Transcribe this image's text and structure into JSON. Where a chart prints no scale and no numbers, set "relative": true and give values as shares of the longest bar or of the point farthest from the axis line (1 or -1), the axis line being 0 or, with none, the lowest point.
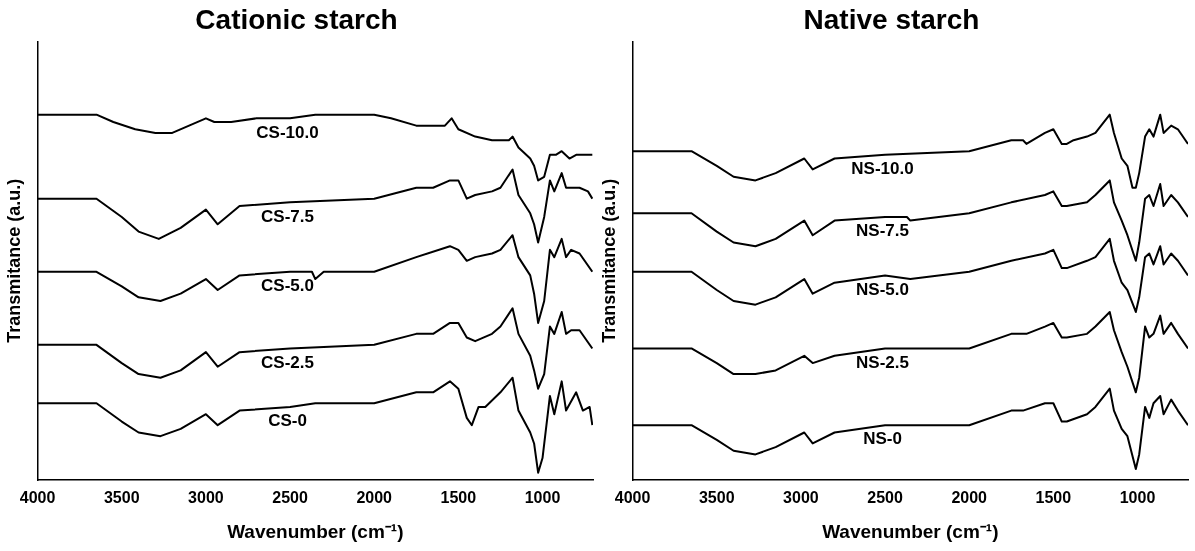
{
  "chart_data": [
    {
      "type": "line",
      "title": "Cationic starch",
      "xlabel": "Wavenumber (cm⁻¹)",
      "ylabel": "Transmitance (a.u.)",
      "relative": true,
      "xlim": [
        4000,
        700
      ],
      "xticks": [
        4000,
        3500,
        3000,
        2500,
        2000,
        1500,
        1000
      ],
      "grid": false,
      "legend": false,
      "marker": "none",
      "line_style": "solid",
      "series": [
        {
          "name": "CS-10.0",
          "color": "#000000",
          "x": [
            4000,
            3800,
            3650,
            3550,
            3420,
            3300,
            3200,
            3100,
            3000,
            2950,
            2900,
            2850,
            2700,
            2500,
            2350,
            2200,
            2000,
            1900,
            1750,
            1650,
            1580,
            1540,
            1500,
            1400,
            1300,
            1200,
            1178,
            1143,
            1073,
            1050,
            1026,
            990,
            956,
            921,
            886,
            840,
            800,
            770,
            730,
            704
          ],
          "values": [
            1.0,
            1.0,
            1.0,
            0.98,
            0.96,
            0.95,
            0.95,
            0.97,
            0.99,
            0.98,
            0.98,
            0.98,
            0.99,
            0.99,
            1.0,
            1.0,
            1.0,
            0.99,
            0.97,
            0.97,
            0.97,
            0.99,
            0.96,
            0.94,
            0.93,
            0.93,
            0.94,
            0.91,
            0.88,
            0.86,
            0.82,
            0.83,
            0.89,
            0.89,
            0.9,
            0.88,
            0.89,
            0.89,
            0.89,
            0.89
          ]
        },
        {
          "name": "CS-7.5",
          "color": "#000000",
          "x": [
            4000,
            3800,
            3650,
            3500,
            3400,
            3280,
            3150,
            3000,
            2930,
            2800,
            2500,
            2000,
            1750,
            1650,
            1550,
            1500,
            1450,
            1400,
            1300,
            1250,
            1178,
            1143,
            1073,
            1050,
            1026,
            990,
            956,
            930,
            886,
            860,
            830,
            780,
            730,
            704
          ],
          "values": [
            0.77,
            0.77,
            0.77,
            0.72,
            0.68,
            0.66,
            0.69,
            0.74,
            0.7,
            0.75,
            0.76,
            0.77,
            0.8,
            0.8,
            0.82,
            0.82,
            0.77,
            0.78,
            0.79,
            0.8,
            0.85,
            0.78,
            0.73,
            0.7,
            0.65,
            0.72,
            0.82,
            0.79,
            0.84,
            0.8,
            0.8,
            0.8,
            0.79,
            0.77
          ]
        },
        {
          "name": "CS-5.0",
          "color": "#000000",
          "x": [
            4000,
            3800,
            3650,
            3500,
            3400,
            3270,
            3150,
            3000,
            2930,
            2800,
            2500,
            2370,
            2350,
            2300,
            2000,
            1750,
            1550,
            1500,
            1450,
            1400,
            1300,
            1250,
            1178,
            1143,
            1073,
            1050,
            1026,
            990,
            956,
            930,
            886,
            860,
            830,
            780,
            704
          ],
          "values": [
            0.57,
            0.57,
            0.57,
            0.53,
            0.5,
            0.49,
            0.51,
            0.55,
            0.52,
            0.56,
            0.57,
            0.57,
            0.55,
            0.57,
            0.57,
            0.61,
            0.64,
            0.63,
            0.6,
            0.61,
            0.62,
            0.63,
            0.67,
            0.61,
            0.56,
            0.51,
            0.43,
            0.49,
            0.63,
            0.61,
            0.66,
            0.61,
            0.63,
            0.62,
            0.57
          ]
        },
        {
          "name": "CS-2.5",
          "color": "#000000",
          "x": [
            4000,
            3800,
            3650,
            3500,
            3400,
            3270,
            3150,
            3000,
            2930,
            2800,
            2500,
            2000,
            1750,
            1650,
            1550,
            1500,
            1450,
            1400,
            1300,
            1250,
            1178,
            1143,
            1073,
            1050,
            1026,
            990,
            956,
            930,
            886,
            860,
            830,
            780,
            704
          ],
          "values": [
            0.37,
            0.37,
            0.37,
            0.32,
            0.29,
            0.28,
            0.3,
            0.35,
            0.31,
            0.35,
            0.36,
            0.37,
            0.4,
            0.4,
            0.43,
            0.43,
            0.39,
            0.38,
            0.4,
            0.42,
            0.47,
            0.4,
            0.34,
            0.3,
            0.25,
            0.29,
            0.42,
            0.4,
            0.46,
            0.4,
            0.41,
            0.41,
            0.36
          ]
        },
        {
          "name": "CS-0",
          "color": "#000000",
          "x": [
            4000,
            3800,
            3650,
            3500,
            3400,
            3270,
            3150,
            3000,
            2930,
            2800,
            2500,
            2350,
            2000,
            1750,
            1650,
            1550,
            1500,
            1450,
            1420,
            1380,
            1340,
            1250,
            1178,
            1143,
            1073,
            1050,
            1026,
            1000,
            956,
            930,
            886,
            860,
            800,
            760,
            720,
            704
          ],
          "values": [
            0.21,
            0.21,
            0.21,
            0.16,
            0.13,
            0.12,
            0.14,
            0.18,
            0.15,
            0.19,
            0.2,
            0.21,
            0.21,
            0.24,
            0.24,
            0.27,
            0.25,
            0.17,
            0.15,
            0.2,
            0.2,
            0.24,
            0.28,
            0.19,
            0.13,
            0.1,
            0.02,
            0.06,
            0.23,
            0.18,
            0.27,
            0.19,
            0.24,
            0.19,
            0.2,
            0.15
          ]
        }
      ]
    },
    {
      "type": "line",
      "title": "Native starch",
      "xlabel": "Wavenumber (cm⁻¹)",
      "ylabel": "Transmitance (a.u.)",
      "relative": true,
      "xlim": [
        4000,
        700
      ],
      "xticks": [
        4000,
        3500,
        3000,
        2500,
        2000,
        1500,
        1000
      ],
      "grid": false,
      "legend": false,
      "marker": "none",
      "line_style": "solid",
      "series": [
        {
          "name": "NS-10.0",
          "color": "#000000",
          "x": [
            4000,
            3800,
            3650,
            3500,
            3400,
            3270,
            3150,
            2980,
            2930,
            2800,
            2500,
            2000,
            1750,
            1680,
            1660,
            1550,
            1500,
            1450,
            1420,
            1380,
            1300,
            1250,
            1165,
            1140,
            1094,
            1060,
            1030,
            1010,
            990,
            955,
            930,
            905,
            865,
            845,
            800,
            760,
            700
          ],
          "values": [
            0.9,
            0.9,
            0.9,
            0.86,
            0.83,
            0.82,
            0.84,
            0.88,
            0.85,
            0.88,
            0.89,
            0.9,
            0.93,
            0.93,
            0.92,
            0.95,
            0.96,
            0.92,
            0.92,
            0.93,
            0.94,
            0.95,
            1.0,
            0.95,
            0.88,
            0.86,
            0.8,
            0.8,
            0.84,
            0.94,
            0.96,
            0.94,
            1.0,
            0.95,
            0.97,
            0.96,
            0.92
          ]
        },
        {
          "name": "NS-7.5",
          "color": "#000000",
          "x": [
            4000,
            3800,
            3650,
            3500,
            3400,
            3270,
            3150,
            2980,
            2930,
            2800,
            2500,
            2370,
            2350,
            2000,
            1750,
            1550,
            1500,
            1450,
            1420,
            1300,
            1250,
            1165,
            1140,
            1094,
            1060,
            1010,
            990,
            955,
            930,
            905,
            865,
            845,
            800,
            760,
            700
          ],
          "values": [
            0.73,
            0.73,
            0.73,
            0.68,
            0.65,
            0.64,
            0.66,
            0.71,
            0.67,
            0.71,
            0.72,
            0.72,
            0.71,
            0.73,
            0.76,
            0.78,
            0.79,
            0.75,
            0.75,
            0.76,
            0.78,
            0.82,
            0.76,
            0.71,
            0.67,
            0.6,
            0.65,
            0.77,
            0.78,
            0.75,
            0.81,
            0.75,
            0.78,
            0.76,
            0.72
          ]
        },
        {
          "name": "NS-5.0",
          "color": "#000000",
          "x": [
            4000,
            3800,
            3650,
            3500,
            3400,
            3270,
            3150,
            2980,
            2930,
            2800,
            2500,
            2350,
            2000,
            1750,
            1550,
            1500,
            1450,
            1420,
            1300,
            1250,
            1165,
            1140,
            1094,
            1060,
            1010,
            990,
            955,
            930,
            905,
            865,
            845,
            800,
            760,
            700
          ],
          "values": [
            0.57,
            0.57,
            0.57,
            0.52,
            0.49,
            0.48,
            0.5,
            0.55,
            0.51,
            0.54,
            0.56,
            0.55,
            0.57,
            0.6,
            0.62,
            0.63,
            0.58,
            0.58,
            0.6,
            0.61,
            0.66,
            0.6,
            0.54,
            0.52,
            0.46,
            0.5,
            0.61,
            0.62,
            0.59,
            0.64,
            0.59,
            0.62,
            0.6,
            0.56
          ]
        },
        {
          "name": "NS-2.5",
          "color": "#000000",
          "x": [
            4000,
            3800,
            3650,
            3500,
            3400,
            3270,
            3150,
            2980,
            2930,
            2800,
            2500,
            2000,
            1750,
            1680,
            1660,
            1550,
            1500,
            1450,
            1420,
            1300,
            1250,
            1165,
            1140,
            1094,
            1060,
            1010,
            990,
            955,
            930,
            905,
            865,
            845,
            800,
            760,
            700
          ],
          "values": [
            0.36,
            0.36,
            0.36,
            0.32,
            0.29,
            0.29,
            0.3,
            0.34,
            0.32,
            0.34,
            0.36,
            0.36,
            0.4,
            0.4,
            0.4,
            0.42,
            0.43,
            0.39,
            0.39,
            0.4,
            0.42,
            0.46,
            0.41,
            0.35,
            0.31,
            0.24,
            0.28,
            0.42,
            0.39,
            0.4,
            0.45,
            0.4,
            0.43,
            0.4,
            0.36
          ]
        },
        {
          "name": "NS-0",
          "color": "#000000",
          "x": [
            4000,
            3800,
            3650,
            3500,
            3400,
            3270,
            3150,
            2980,
            2930,
            2800,
            2500,
            2350,
            2000,
            1750,
            1680,
            1550,
            1500,
            1450,
            1420,
            1300,
            1250,
            1165,
            1140,
            1094,
            1060,
            1010,
            990,
            955,
            930,
            905,
            865,
            845,
            800,
            760,
            700
          ],
          "values": [
            0.15,
            0.15,
            0.15,
            0.11,
            0.08,
            0.07,
            0.09,
            0.13,
            0.1,
            0.13,
            0.15,
            0.15,
            0.15,
            0.19,
            0.19,
            0.21,
            0.21,
            0.16,
            0.16,
            0.18,
            0.2,
            0.25,
            0.19,
            0.14,
            0.12,
            0.03,
            0.07,
            0.2,
            0.17,
            0.21,
            0.23,
            0.18,
            0.22,
            0.19,
            0.15
          ]
        }
      ]
    }
  ]
}
